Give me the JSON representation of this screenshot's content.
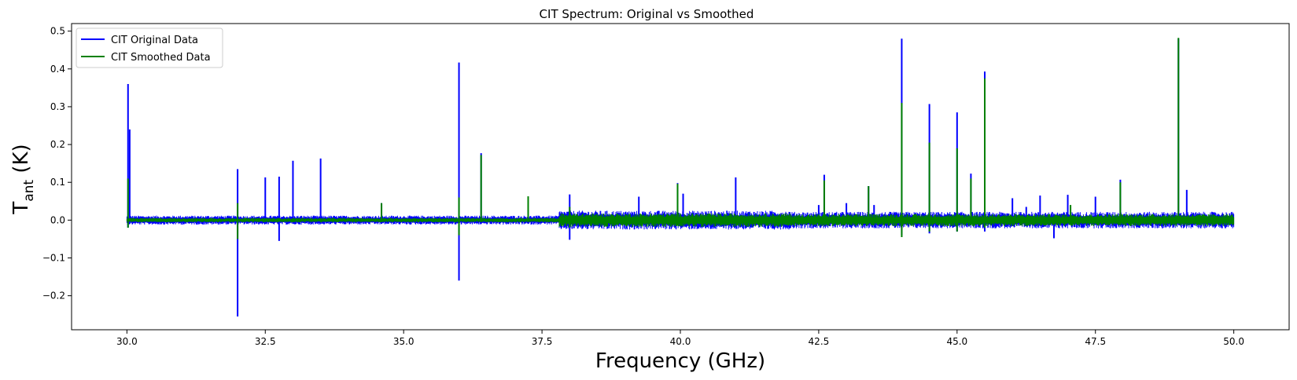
{
  "chart_data": {
    "type": "line",
    "title": "CIT Spectrum: Original vs Smoothed",
    "xlabel": "Frequency (GHz)",
    "ylabel_main": "T",
    "ylabel_sub": "ant",
    "ylabel_suffix": " (K)",
    "xlim": [
      29.0,
      51.0
    ],
    "ylim": [
      -0.29,
      0.52
    ],
    "x_ticks": [
      30.0,
      32.5,
      35.0,
      37.5,
      40.0,
      42.5,
      45.0,
      47.5,
      50.0
    ],
    "x_tick_labels": [
      "30.0",
      "32.5",
      "35.0",
      "37.5",
      "40.0",
      "42.5",
      "45.0",
      "47.5",
      "50.0"
    ],
    "y_ticks": [
      -0.2,
      -0.1,
      0.0,
      0.1,
      0.2,
      0.3,
      0.4,
      0.5
    ],
    "y_tick_labels": [
      "−0.2",
      "−0.1",
      "0.0",
      "0.1",
      "0.2",
      "0.3",
      "0.4",
      "0.5"
    ],
    "grid": false,
    "legend_position": "top-left",
    "x_range": [
      30.0,
      50.0
    ],
    "series": [
      {
        "name": "CIT Original Data",
        "color": "#0000ff",
        "noise_segments": [
          {
            "x0": 30.0,
            "x1": 37.8,
            "amp": 0.012
          },
          {
            "x0": 37.8,
            "x1": 42.0,
            "amp": 0.025
          },
          {
            "x0": 42.0,
            "x1": 50.0,
            "amp": 0.022
          }
        ],
        "spikes": [
          {
            "x": 30.02,
            "max": 0.36,
            "min": -0.02
          },
          {
            "x": 30.05,
            "max": 0.24,
            "min": -0.01
          },
          {
            "x": 32.0,
            "max": 0.135,
            "min": -0.255
          },
          {
            "x": 32.5,
            "max": 0.113,
            "min": -0.01
          },
          {
            "x": 32.75,
            "max": 0.115,
            "min": -0.055
          },
          {
            "x": 33.0,
            "max": 0.157,
            "min": -0.01
          },
          {
            "x": 33.5,
            "max": 0.163,
            "min": -0.01
          },
          {
            "x": 34.6,
            "max": 0.045,
            "min": -0.01
          },
          {
            "x": 36.0,
            "max": 0.417,
            "min": -0.16
          },
          {
            "x": 36.4,
            "max": 0.177,
            "min": -0.01
          },
          {
            "x": 37.25,
            "max": 0.06,
            "min": -0.01
          },
          {
            "x": 38.0,
            "max": 0.068,
            "min": -0.052
          },
          {
            "x": 39.25,
            "max": 0.062,
            "min": -0.01
          },
          {
            "x": 39.95,
            "max": 0.098,
            "min": -0.01
          },
          {
            "x": 40.05,
            "max": 0.07,
            "min": -0.01
          },
          {
            "x": 41.0,
            "max": 0.113,
            "min": -0.01
          },
          {
            "x": 42.5,
            "max": 0.04,
            "min": -0.01
          },
          {
            "x": 42.6,
            "max": 0.12,
            "min": -0.01
          },
          {
            "x": 43.0,
            "max": 0.045,
            "min": -0.01
          },
          {
            "x": 43.4,
            "max": 0.09,
            "min": -0.01
          },
          {
            "x": 43.5,
            "max": 0.04,
            "min": -0.01
          },
          {
            "x": 44.0,
            "max": 0.48,
            "min": -0.04
          },
          {
            "x": 44.5,
            "max": 0.307,
            "min": -0.035
          },
          {
            "x": 45.0,
            "max": 0.285,
            "min": -0.03
          },
          {
            "x": 45.25,
            "max": 0.123,
            "min": -0.01
          },
          {
            "x": 45.5,
            "max": 0.393,
            "min": -0.03
          },
          {
            "x": 46.0,
            "max": 0.058,
            "min": -0.01
          },
          {
            "x": 46.25,
            "max": 0.035,
            "min": -0.01
          },
          {
            "x": 46.5,
            "max": 0.065,
            "min": -0.01
          },
          {
            "x": 46.75,
            "max": 0.015,
            "min": -0.048
          },
          {
            "x": 47.0,
            "max": 0.067,
            "min": -0.01
          },
          {
            "x": 47.5,
            "max": 0.062,
            "min": -0.01
          },
          {
            "x": 47.95,
            "max": 0.107,
            "min": -0.01
          },
          {
            "x": 49.0,
            "max": 0.48,
            "min": -0.01
          },
          {
            "x": 49.15,
            "max": 0.08,
            "min": -0.01
          }
        ]
      },
      {
        "name": "CIT Smoothed Data",
        "color": "#008000",
        "noise_segments": [
          {
            "x0": 30.0,
            "x1": 37.8,
            "amp": 0.006
          },
          {
            "x0": 37.8,
            "x1": 42.0,
            "amp": 0.018
          },
          {
            "x0": 42.0,
            "x1": 50.0,
            "amp": 0.016
          }
        ],
        "spikes": [
          {
            "x": 30.02,
            "max": 0.11,
            "min": -0.02
          },
          {
            "x": 32.0,
            "max": 0.045,
            "min": -0.05
          },
          {
            "x": 34.6,
            "max": 0.045,
            "min": -0.005
          },
          {
            "x": 36.0,
            "max": 0.06,
            "min": -0.04
          },
          {
            "x": 36.4,
            "max": 0.172,
            "min": -0.005
          },
          {
            "x": 37.25,
            "max": 0.063,
            "min": -0.005
          },
          {
            "x": 38.0,
            "max": 0.035,
            "min": -0.02
          },
          {
            "x": 39.95,
            "max": 0.096,
            "min": -0.005
          },
          {
            "x": 42.6,
            "max": 0.105,
            "min": -0.005
          },
          {
            "x": 43.4,
            "max": 0.09,
            "min": -0.005
          },
          {
            "x": 44.0,
            "max": 0.31,
            "min": -0.045
          },
          {
            "x": 44.5,
            "max": 0.205,
            "min": -0.03
          },
          {
            "x": 45.0,
            "max": 0.19,
            "min": -0.03
          },
          {
            "x": 45.25,
            "max": 0.11,
            "min": -0.005
          },
          {
            "x": 45.5,
            "max": 0.375,
            "min": -0.02
          },
          {
            "x": 47.05,
            "max": 0.04,
            "min": -0.005
          },
          {
            "x": 47.95,
            "max": 0.1,
            "min": -0.005
          },
          {
            "x": 49.0,
            "max": 0.482,
            "min": -0.005
          }
        ]
      }
    ]
  }
}
